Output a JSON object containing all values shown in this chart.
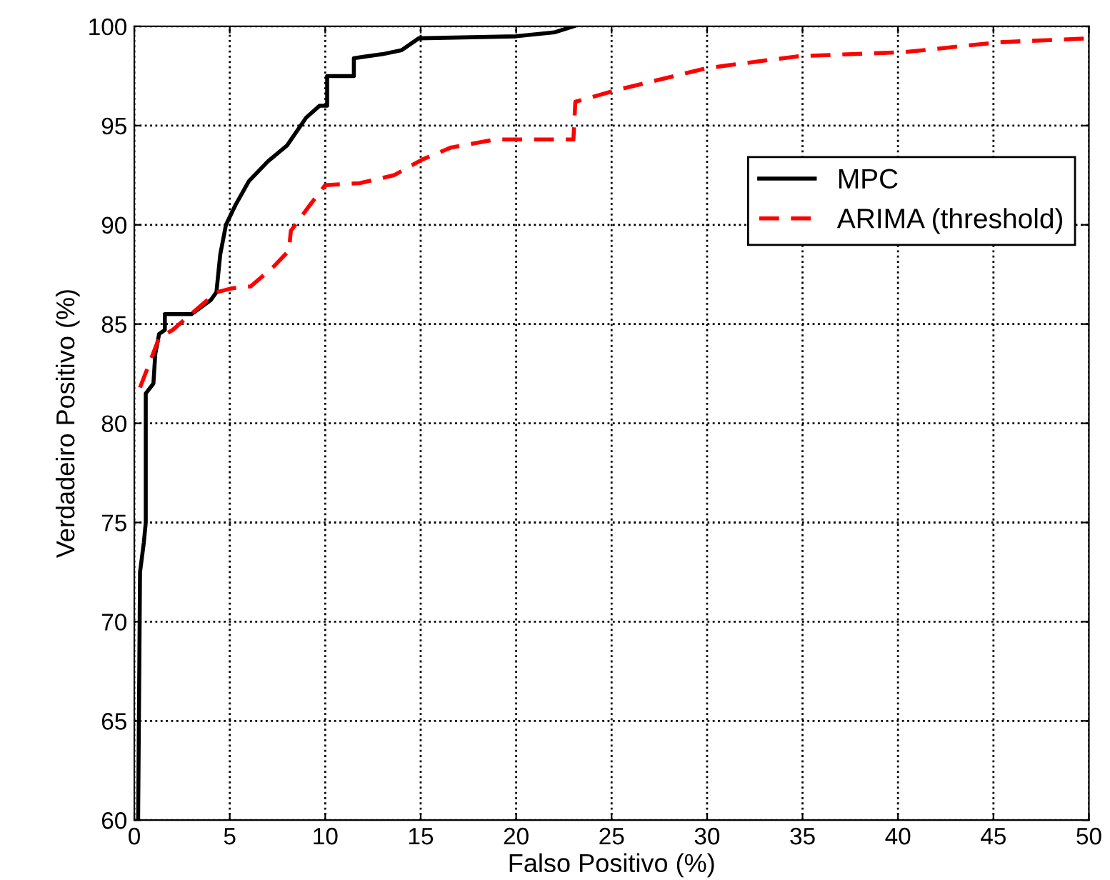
{
  "chart_data": {
    "type": "line",
    "xlabel": "Falso Positivo (%)",
    "ylabel": "Verdadeiro Positivo (%)",
    "xlim": [
      0,
      50
    ],
    "ylim": [
      60,
      100
    ],
    "xticks": [
      0,
      5,
      10,
      15,
      20,
      25,
      30,
      35,
      40,
      45,
      50
    ],
    "yticks": [
      60,
      65,
      70,
      75,
      80,
      85,
      90,
      95,
      100
    ],
    "grid": true,
    "legend": "right",
    "marker": "none",
    "series": [
      {
        "name": "MPC",
        "color": "#000000",
        "line_style": "solid",
        "x": [
          0.2,
          0.3,
          0.5,
          0.6,
          0.6,
          1.0,
          1.1,
          1.3,
          1.6,
          1.6,
          3.0,
          4.0,
          4.3,
          4.5,
          4.8,
          5.3,
          6.0,
          7.0,
          8.0,
          9.0,
          9.7,
          10.1,
          10.1,
          11.5,
          11.5,
          13.0,
          14.0,
          14.9,
          20.0,
          22.0,
          23.0
        ],
        "values": [
          60,
          72.5,
          74,
          75,
          81.5,
          82,
          83.5,
          84.5,
          84.7,
          85.5,
          85.5,
          86.2,
          86.6,
          88.5,
          90,
          91,
          92.2,
          93.2,
          94,
          95.4,
          96,
          96,
          97.5,
          97.5,
          98.4,
          98.6,
          98.8,
          99.4,
          99.5,
          99.7,
          100
        ]
      },
      {
        "name": "ARIMA (threshold)",
        "color": "#ff0000",
        "line_style": "dashed",
        "x": [
          0.3,
          1.3,
          2.0,
          4.3,
          5.1,
          6.1,
          7.3,
          8.1,
          8.2,
          9.2,
          10.0,
          11.8,
          13.6,
          15.1,
          16.6,
          18.9,
          23.0,
          23.1,
          25.3,
          30.0,
          34.8,
          40.3,
          45.3,
          50.0
        ],
        "values": [
          81.8,
          84.3,
          84.7,
          86.6,
          86.8,
          86.9,
          87.9,
          88.7,
          89.7,
          91.0,
          92.0,
          92.1,
          92.5,
          93.3,
          93.9,
          94.3,
          94.3,
          96.2,
          96.8,
          97.9,
          98.5,
          98.7,
          99.2,
          99.4
        ]
      }
    ]
  }
}
